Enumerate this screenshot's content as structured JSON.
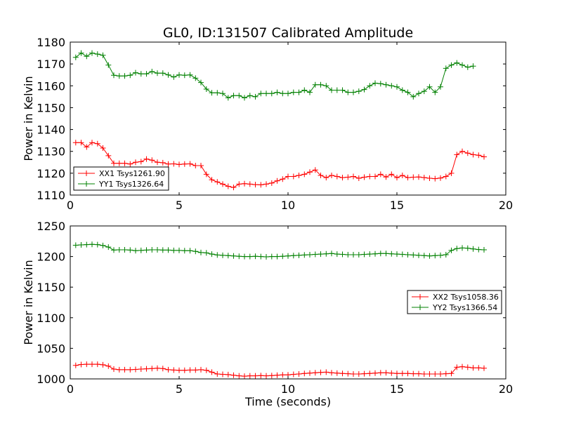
{
  "title": "GL0, ID:131507 Calibrated Amplitude",
  "colors": {
    "red": "#ff0000",
    "green": "#008000"
  },
  "chart_data": [
    {
      "type": "line",
      "xlabel": "",
      "ylabel": "Power in Kelvin",
      "xlim": [
        0,
        20
      ],
      "ylim": [
        1110,
        1180
      ],
      "xticks": [
        0,
        5,
        10,
        15,
        20
      ],
      "yticks": [
        1110,
        1120,
        1130,
        1140,
        1150,
        1160,
        1170,
        1180
      ],
      "legend": "lower-left",
      "grid": false,
      "x": [
        0.25,
        0.5,
        0.75,
        1.0,
        1.25,
        1.5,
        1.75,
        2.0,
        2.25,
        2.5,
        2.75,
        3.0,
        3.25,
        3.5,
        3.75,
        4.0,
        4.25,
        4.5,
        4.75,
        5.0,
        5.25,
        5.5,
        5.75,
        6.0,
        6.25,
        6.5,
        6.75,
        7.0,
        7.25,
        7.5,
        7.75,
        8.0,
        8.25,
        8.5,
        8.75,
        9.0,
        9.25,
        9.5,
        9.75,
        10.0,
        10.25,
        10.5,
        10.75,
        11.0,
        11.25,
        11.5,
        11.75,
        12.0,
        12.25,
        12.5,
        12.75,
        13.0,
        13.25,
        13.5,
        13.75,
        14.0,
        14.25,
        14.5,
        14.75,
        15.0,
        15.25,
        15.5,
        15.75,
        16.0,
        16.25,
        16.5,
        16.75,
        17.0,
        17.25,
        17.5,
        17.75,
        18.0,
        18.25,
        18.5,
        18.75,
        19.0,
        19.25,
        19.5,
        19.75,
        20.0
      ],
      "series": [
        {
          "name": "XX1 Tsys1261.90",
          "color": "#ff0000",
          "values": [
            1134,
            1134,
            1132,
            1134,
            1133.5,
            1131.5,
            1128,
            1124.5,
            1124.5,
            1124.5,
            1124.2,
            1125,
            1125.3,
            1126.5,
            1126,
            1125,
            1124.8,
            1124.2,
            1124.3,
            1124,
            1124.2,
            1124.3,
            1123.5,
            1123.5,
            1119.5,
            1117,
            1116,
            1115,
            1114,
            1113.5,
            1115,
            1115.2,
            1115,
            1114.8,
            1114.7,
            1115,
            1115.5,
            1116.5,
            1117.3,
            1118.5,
            1118.5,
            1119,
            1119.5,
            1120.5,
            1121.5,
            1119,
            1118,
            1119,
            1118.5,
            1118,
            1118.2,
            1118.5,
            1117.7,
            1118.2,
            1118.5,
            1118.5,
            1119.5,
            1118.3,
            1119.5,
            1118,
            1119,
            1118,
            1118.2,
            1118.3,
            1118,
            1117.7,
            1117.5,
            1117.8,
            1118.5,
            1120,
            1128.5,
            1130,
            1129.2,
            1128.5,
            1128.2,
            1127.5,
            null,
            null,
            null,
            null
          ]
        },
        {
          "name": "YY1 Tsys1326.64",
          "color": "#008000",
          "values": [
            1173,
            1175,
            1173.5,
            1175,
            1174.5,
            1174,
            1169.5,
            1164.8,
            1164.5,
            1164.5,
            1164.8,
            1166,
            1165.5,
            1165.5,
            1166.5,
            1165.8,
            1165.8,
            1165,
            1164,
            1165,
            1164.8,
            1165,
            1163.5,
            1161.5,
            1158.5,
            1156.8,
            1156.8,
            1156.5,
            1154.5,
            1155.5,
            1155.5,
            1154.5,
            1155.5,
            1155,
            1156.5,
            1156.5,
            1156.5,
            1157,
            1156.5,
            1156.5,
            1157,
            1157,
            1158,
            1157,
            1160.5,
            1160.5,
            1160,
            1158,
            1158,
            1158,
            1157,
            1157,
            1157.5,
            1158.3,
            1160,
            1161.2,
            1161,
            1160.5,
            1160,
            1159.5,
            1158,
            1157,
            1155,
            1156.5,
            1157.5,
            1159.5,
            1157,
            1159.5,
            1168,
            1169.5,
            1170.5,
            1169.5,
            1168.5,
            1169,
            null,
            null,
            null,
            null,
            null,
            null
          ]
        }
      ]
    },
    {
      "type": "line",
      "xlabel": "Time (seconds)",
      "ylabel": "Power in Kelvin",
      "xlim": [
        0,
        20
      ],
      "ylim": [
        1000,
        1250
      ],
      "xticks": [
        0,
        5,
        10,
        15,
        20
      ],
      "yticks": [
        1000,
        1050,
        1100,
        1150,
        1200,
        1250
      ],
      "legend": "center-right",
      "grid": false,
      "x": [
        0.25,
        0.5,
        0.75,
        1.0,
        1.25,
        1.5,
        1.75,
        2.0,
        2.25,
        2.5,
        2.75,
        3.0,
        3.25,
        3.5,
        3.75,
        4.0,
        4.25,
        4.5,
        4.75,
        5.0,
        5.25,
        5.5,
        5.75,
        6.0,
        6.25,
        6.5,
        6.75,
        7.0,
        7.25,
        7.5,
        7.75,
        8.0,
        8.25,
        8.5,
        8.75,
        9.0,
        9.25,
        9.5,
        9.75,
        10.0,
        10.25,
        10.5,
        10.75,
        11.0,
        11.25,
        11.5,
        11.75,
        12.0,
        12.25,
        12.5,
        12.75,
        13.0,
        13.25,
        13.5,
        13.75,
        14.0,
        14.25,
        14.5,
        14.75,
        15.0,
        15.25,
        15.5,
        15.75,
        16.0,
        16.25,
        16.5,
        16.75,
        17.0,
        17.25,
        17.5,
        17.75,
        18.0,
        18.25,
        18.5,
        18.75,
        19.0,
        19.25,
        19.5,
        19.75,
        20.0
      ],
      "series": [
        {
          "name": "XX2 Tsys1058.36",
          "color": "#ff0000",
          "values": [
            1022,
            1023.5,
            1024,
            1024,
            1024,
            1023,
            1021,
            1016,
            1015,
            1015,
            1015,
            1015.5,
            1016,
            1016.5,
            1017,
            1017.5,
            1017,
            1015,
            1014.5,
            1014,
            1014,
            1014.5,
            1014.5,
            1015,
            1014,
            1011,
            1008,
            1007.5,
            1007,
            1006,
            1005,
            1004.5,
            1005,
            1005,
            1005.5,
            1005,
            1005.5,
            1006,
            1006.5,
            1006.5,
            1007.5,
            1008,
            1009,
            1009.5,
            1010,
            1010.5,
            1011,
            1010,
            1009.5,
            1009,
            1008.5,
            1008,
            1008,
            1008.5,
            1009,
            1009.5,
            1010,
            1010,
            1009.5,
            1009,
            1009,
            1009,
            1008.5,
            1008.5,
            1008,
            1008,
            1008,
            1008,
            1008.5,
            1009,
            1019,
            1020,
            1019,
            1018,
            1018,
            1017.5,
            null,
            null,
            null,
            null
          ]
        },
        {
          "name": "YY2 Tsys1366.54",
          "color": "#008000",
          "values": [
            1218.5,
            1219,
            1219.5,
            1220,
            1219.5,
            1218,
            1215.5,
            1210.5,
            1211,
            1211,
            1210.5,
            1209.5,
            1210,
            1210.5,
            1211,
            1211,
            1210.5,
            1210.5,
            1210,
            1210,
            1209.5,
            1209.5,
            1208.5,
            1206.5,
            1206,
            1204,
            1202.5,
            1202,
            1201.5,
            1201,
            1200.5,
            1200,
            1200,
            1200.5,
            1200,
            1199.5,
            1200,
            1200,
            1200.5,
            1201,
            1201.5,
            1202,
            1202.5,
            1203,
            1203.5,
            1204,
            1204.5,
            1205,
            1204,
            1203.5,
            1203,
            1203,
            1203,
            1203.5,
            1204,
            1204.5,
            1205,
            1205,
            1204.5,
            1204,
            1203.5,
            1203,
            1202.5,
            1202,
            1201.5,
            1201,
            1201.5,
            1202,
            1203,
            1210,
            1213,
            1214,
            1213.5,
            1212.5,
            1211.5,
            1211,
            null,
            null,
            null,
            null
          ]
        }
      ]
    }
  ]
}
